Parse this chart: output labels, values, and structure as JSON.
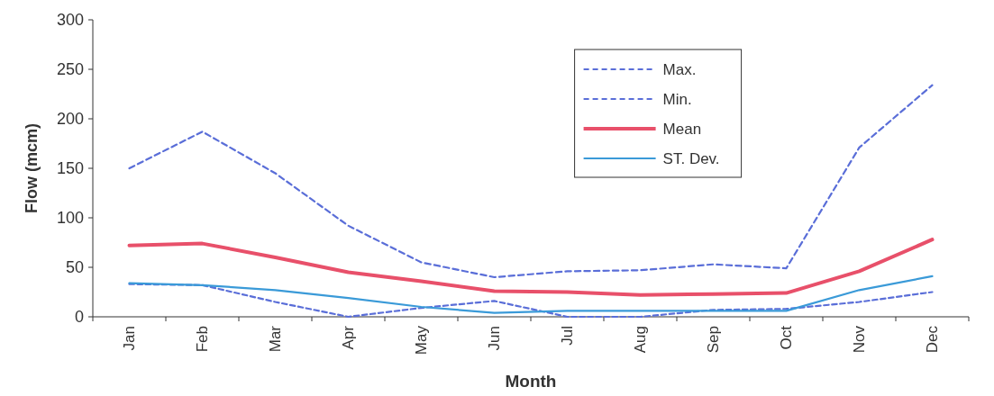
{
  "chart_data": {
    "type": "line",
    "xlabel": "Month",
    "ylabel": "Flow (mcm)",
    "categories": [
      "Jan",
      "Feb",
      "Mar",
      "Apr",
      "May",
      "Jun",
      "Jul",
      "Aug",
      "Sep",
      "Oct",
      "Nov",
      "Dec"
    ],
    "series": [
      {
        "name": "Max.",
        "color": "#5a6ed8",
        "line_style": "dashed",
        "values": [
          150,
          187,
          145,
          92,
          55,
          40,
          46,
          47,
          53,
          49,
          171,
          234
        ]
      },
      {
        "name": "Min.",
        "color": "#5a6ed8",
        "line_style": "dashed",
        "values": [
          33,
          32,
          15,
          0,
          9,
          16,
          0,
          0,
          7,
          8,
          15,
          25
        ]
      },
      {
        "name": "Mean",
        "color": "#e8506a",
        "line_style": "solid",
        "values": [
          72,
          74,
          60,
          45,
          36,
          26,
          25,
          22,
          23,
          24,
          46,
          78
        ]
      },
      {
        "name": "ST. Dev.",
        "color": "#3a9ad8",
        "line_style": "solid",
        "values": [
          34,
          32,
          27,
          19,
          10,
          4,
          6,
          6,
          6,
          6,
          27,
          41
        ]
      }
    ],
    "ylim": [
      0,
      300
    ],
    "yticks": [
      0,
      50,
      100,
      150,
      200,
      250,
      300
    ],
    "grid": false,
    "legend": "top right",
    "marker": "none"
  }
}
